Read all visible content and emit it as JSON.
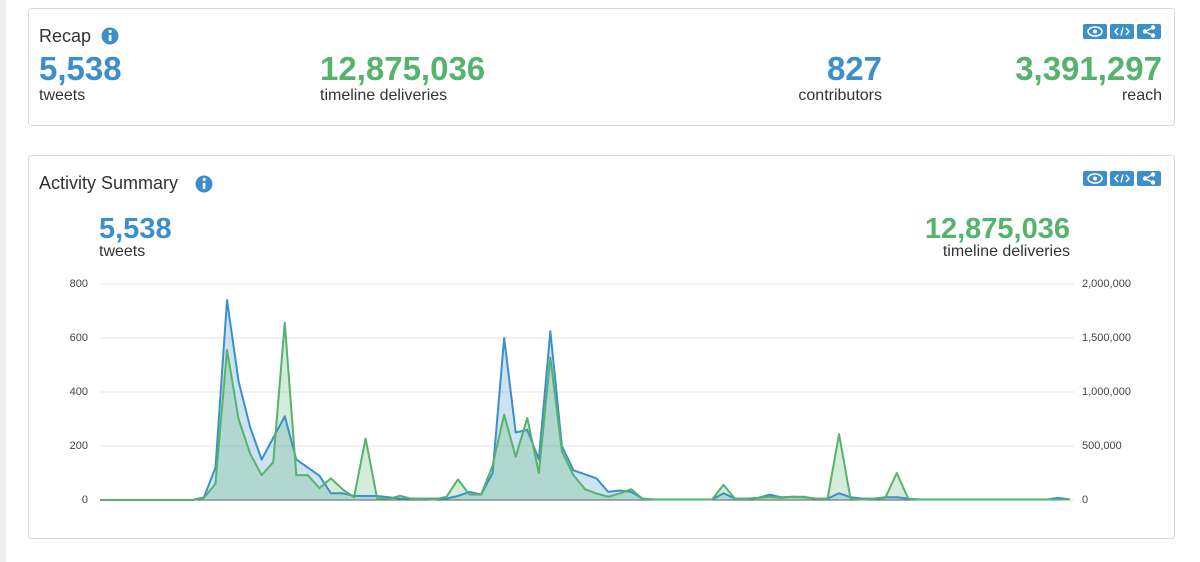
{
  "recap": {
    "title": "Recap",
    "stats": [
      {
        "value": "5,538",
        "label": "tweets"
      },
      {
        "value": "12,875,036",
        "label": "timeline deliveries"
      },
      {
        "value": "827",
        "label": "contributors"
      },
      {
        "value": "3,391,297",
        "label": "reach"
      }
    ]
  },
  "activity": {
    "title": "Activity Summary",
    "stats": [
      "5,538",
      "12,875,036"
    ]
  },
  "chart_data": {
    "type": "area",
    "categories": [
      null,
      null,
      null,
      null,
      null,
      null,
      null,
      null,
      null,
      null,
      null,
      null,
      null,
      null,
      null,
      null,
      null,
      null,
      null,
      null,
      null,
      null,
      null,
      null,
      null,
      null,
      null,
      null,
      null,
      null,
      null,
      null,
      null,
      null,
      null,
      null,
      null,
      null,
      null,
      null,
      null,
      null,
      null,
      null,
      null,
      null,
      null,
      null,
      null,
      null,
      null,
      null,
      null,
      null,
      null,
      null,
      null,
      null,
      null,
      null,
      null,
      null,
      null,
      null,
      null,
      null,
      null,
      null,
      null,
      null,
      null,
      null,
      null,
      null,
      null,
      null,
      null,
      null,
      null,
      null,
      null,
      null,
      null,
      null,
      null
    ],
    "series": [
      {
        "name": "tweets",
        "color": "#3d8fcc",
        "axis": "y",
        "values": [
          0,
          0,
          0,
          0,
          0,
          0,
          0,
          0,
          0,
          10,
          120,
          740,
          440,
          270,
          150,
          230,
          310,
          150,
          120,
          90,
          25,
          25,
          15,
          15,
          15,
          10,
          5,
          5,
          5,
          5,
          5,
          15,
          30,
          20,
          100,
          600,
          250,
          260,
          150,
          625,
          200,
          110,
          95,
          80,
          30,
          35,
          30,
          5,
          2,
          2,
          2,
          2,
          2,
          2,
          25,
          5,
          5,
          8,
          20,
          10,
          12,
          10,
          5,
          5,
          25,
          10,
          5,
          5,
          10,
          10,
          5,
          2,
          2,
          2,
          2,
          2,
          2,
          2,
          2,
          2,
          2,
          2,
          2,
          8,
          2
        ]
      },
      {
        "name": "timeline deliveries",
        "color": "#56b36b",
        "axis": "y2",
        "values": [
          0,
          0,
          0,
          0,
          0,
          0,
          0,
          0,
          0,
          20000,
          150000,
          1390000,
          750000,
          430000,
          230000,
          350000,
          1640000,
          230000,
          230000,
          110000,
          200000,
          100000,
          25000,
          570000,
          15000,
          10000,
          40000,
          10000,
          10000,
          5000,
          30000,
          190000,
          50000,
          50000,
          320000,
          790000,
          400000,
          760000,
          250000,
          1320000,
          450000,
          230000,
          100000,
          60000,
          30000,
          60000,
          100000,
          10000,
          5000,
          5000,
          5000,
          5000,
          5000,
          5000,
          140000,
          10000,
          10000,
          20000,
          30000,
          20000,
          30000,
          30000,
          10000,
          10000,
          610000,
          10000,
          5000,
          10000,
          20000,
          250000,
          10000,
          5000,
          5000,
          5000,
          5000,
          5000,
          5000,
          5000,
          5000,
          5000,
          5000,
          5000,
          5000,
          5000,
          5000
        ]
      }
    ],
    "ylim": [
      0,
      800
    ],
    "yticks": [
      0,
      200,
      400,
      600,
      800
    ],
    "y2lim": [
      0,
      2000000
    ],
    "y2ticks": [
      {
        "value": 0,
        "label": "0"
      },
      {
        "value": 500000,
        "label": "500,000"
      },
      {
        "value": 1000000,
        "label": "1,000,000"
      },
      {
        "value": 1500000,
        "label": "1,500,000"
      },
      {
        "value": 2000000,
        "label": "2,000,000"
      }
    ],
    "grid": true
  }
}
